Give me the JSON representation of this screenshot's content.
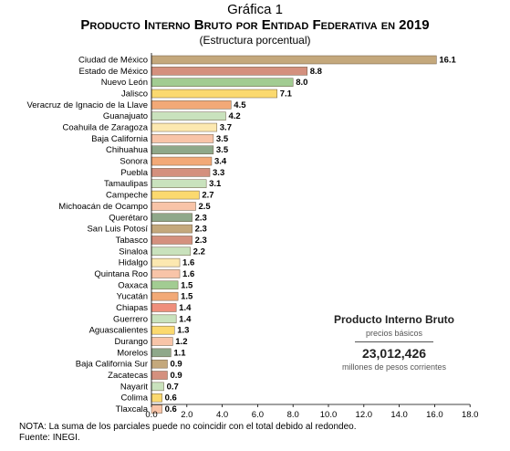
{
  "figure_label": "Gráfica 1",
  "title": "Producto Interno Bruto por Entidad Federativa en 2019",
  "subtitle": "(Estructura porcentual)",
  "summary": {
    "title": "Producto Interno Bruto",
    "subtitle": "precios básicos",
    "value": "23,012,426",
    "unit": "millones de pesos corrientes"
  },
  "note": "NOTA: La suma de los parciales puede no coincidir con el total debido al redondeo.",
  "source": "Fuente: INEGI.",
  "colors": {
    "tan": "#c4a87c",
    "rose": "#d4907e",
    "green": "#a2cc92",
    "yellow": "#fbd96f",
    "pale_yellow": "#fce8b0",
    "peach": "#f8c4a8",
    "sage": "#8fa88a",
    "orange": "#f2a977",
    "mint": "#c9e2bd",
    "salmon": "#ef8f7c"
  },
  "chart_data": {
    "type": "bar",
    "orientation": "horizontal",
    "categories": [
      "Ciudad de México",
      "Estado de México",
      "Nuevo León",
      "Jalisco",
      "Veracruz de Ignacio de la Llave",
      "Guanajuato",
      "Coahuila de Zaragoza",
      "Baja California",
      "Chihuahua",
      "Sonora",
      "Puebla",
      "Tamaulipas",
      "Campeche",
      "Michoacán de Ocampo",
      "Querétaro",
      "San Luis Potosí",
      "Tabasco",
      "Sinaloa",
      "Hidalgo",
      "Quintana Roo",
      "Oaxaca",
      "Yucatán",
      "Chiapas",
      "Guerrero",
      "Aguascalientes",
      "Durango",
      "Morelos",
      "Baja California Sur",
      "Zacatecas",
      "Nayarit",
      "Colima",
      "Tlaxcala"
    ],
    "values": [
      16.1,
      8.8,
      8.0,
      7.1,
      4.5,
      4.2,
      3.7,
      3.5,
      3.5,
      3.4,
      3.3,
      3.1,
      2.7,
      2.5,
      2.3,
      2.3,
      2.3,
      2.2,
      1.6,
      1.6,
      1.5,
      1.5,
      1.4,
      1.4,
      1.3,
      1.2,
      1.1,
      0.9,
      0.9,
      0.7,
      0.6,
      0.6
    ],
    "value_labels": [
      "16.1",
      "8.8",
      "8.0",
      "7.1",
      "4.5",
      "4.2",
      "3.7",
      "3.5",
      "3.5",
      "3.4",
      "3.3",
      "3.1",
      "2.7",
      "2.5",
      "2.3",
      "2.3",
      "2.3",
      "2.2",
      "1.6",
      "1.6",
      "1.5",
      "1.5",
      "1.4",
      "1.4",
      "1.3",
      "1.2",
      "1.1",
      "0.9",
      "0.9",
      "0.7",
      "0.6",
      "0.6"
    ],
    "bar_colors": [
      "tan",
      "rose",
      "green",
      "yellow",
      "orange",
      "mint",
      "pale_yellow",
      "peach",
      "sage",
      "orange",
      "rose",
      "mint",
      "yellow",
      "peach",
      "sage",
      "tan",
      "rose",
      "mint",
      "pale_yellow",
      "peach",
      "green",
      "orange",
      "salmon",
      "mint",
      "yellow",
      "peach",
      "sage",
      "tan",
      "rose",
      "mint",
      "yellow",
      "peach"
    ],
    "xlim": [
      0,
      18
    ],
    "xticks": [
      0,
      2,
      4,
      6,
      8,
      10,
      12,
      14,
      16,
      18
    ],
    "xtick_labels": [
      "0.0",
      "2.0",
      "4.0",
      "6.0",
      "8.0",
      "10.0",
      "12.0",
      "14.0",
      "16.0",
      "18.0"
    ],
    "grid": false,
    "legend": "none"
  }
}
